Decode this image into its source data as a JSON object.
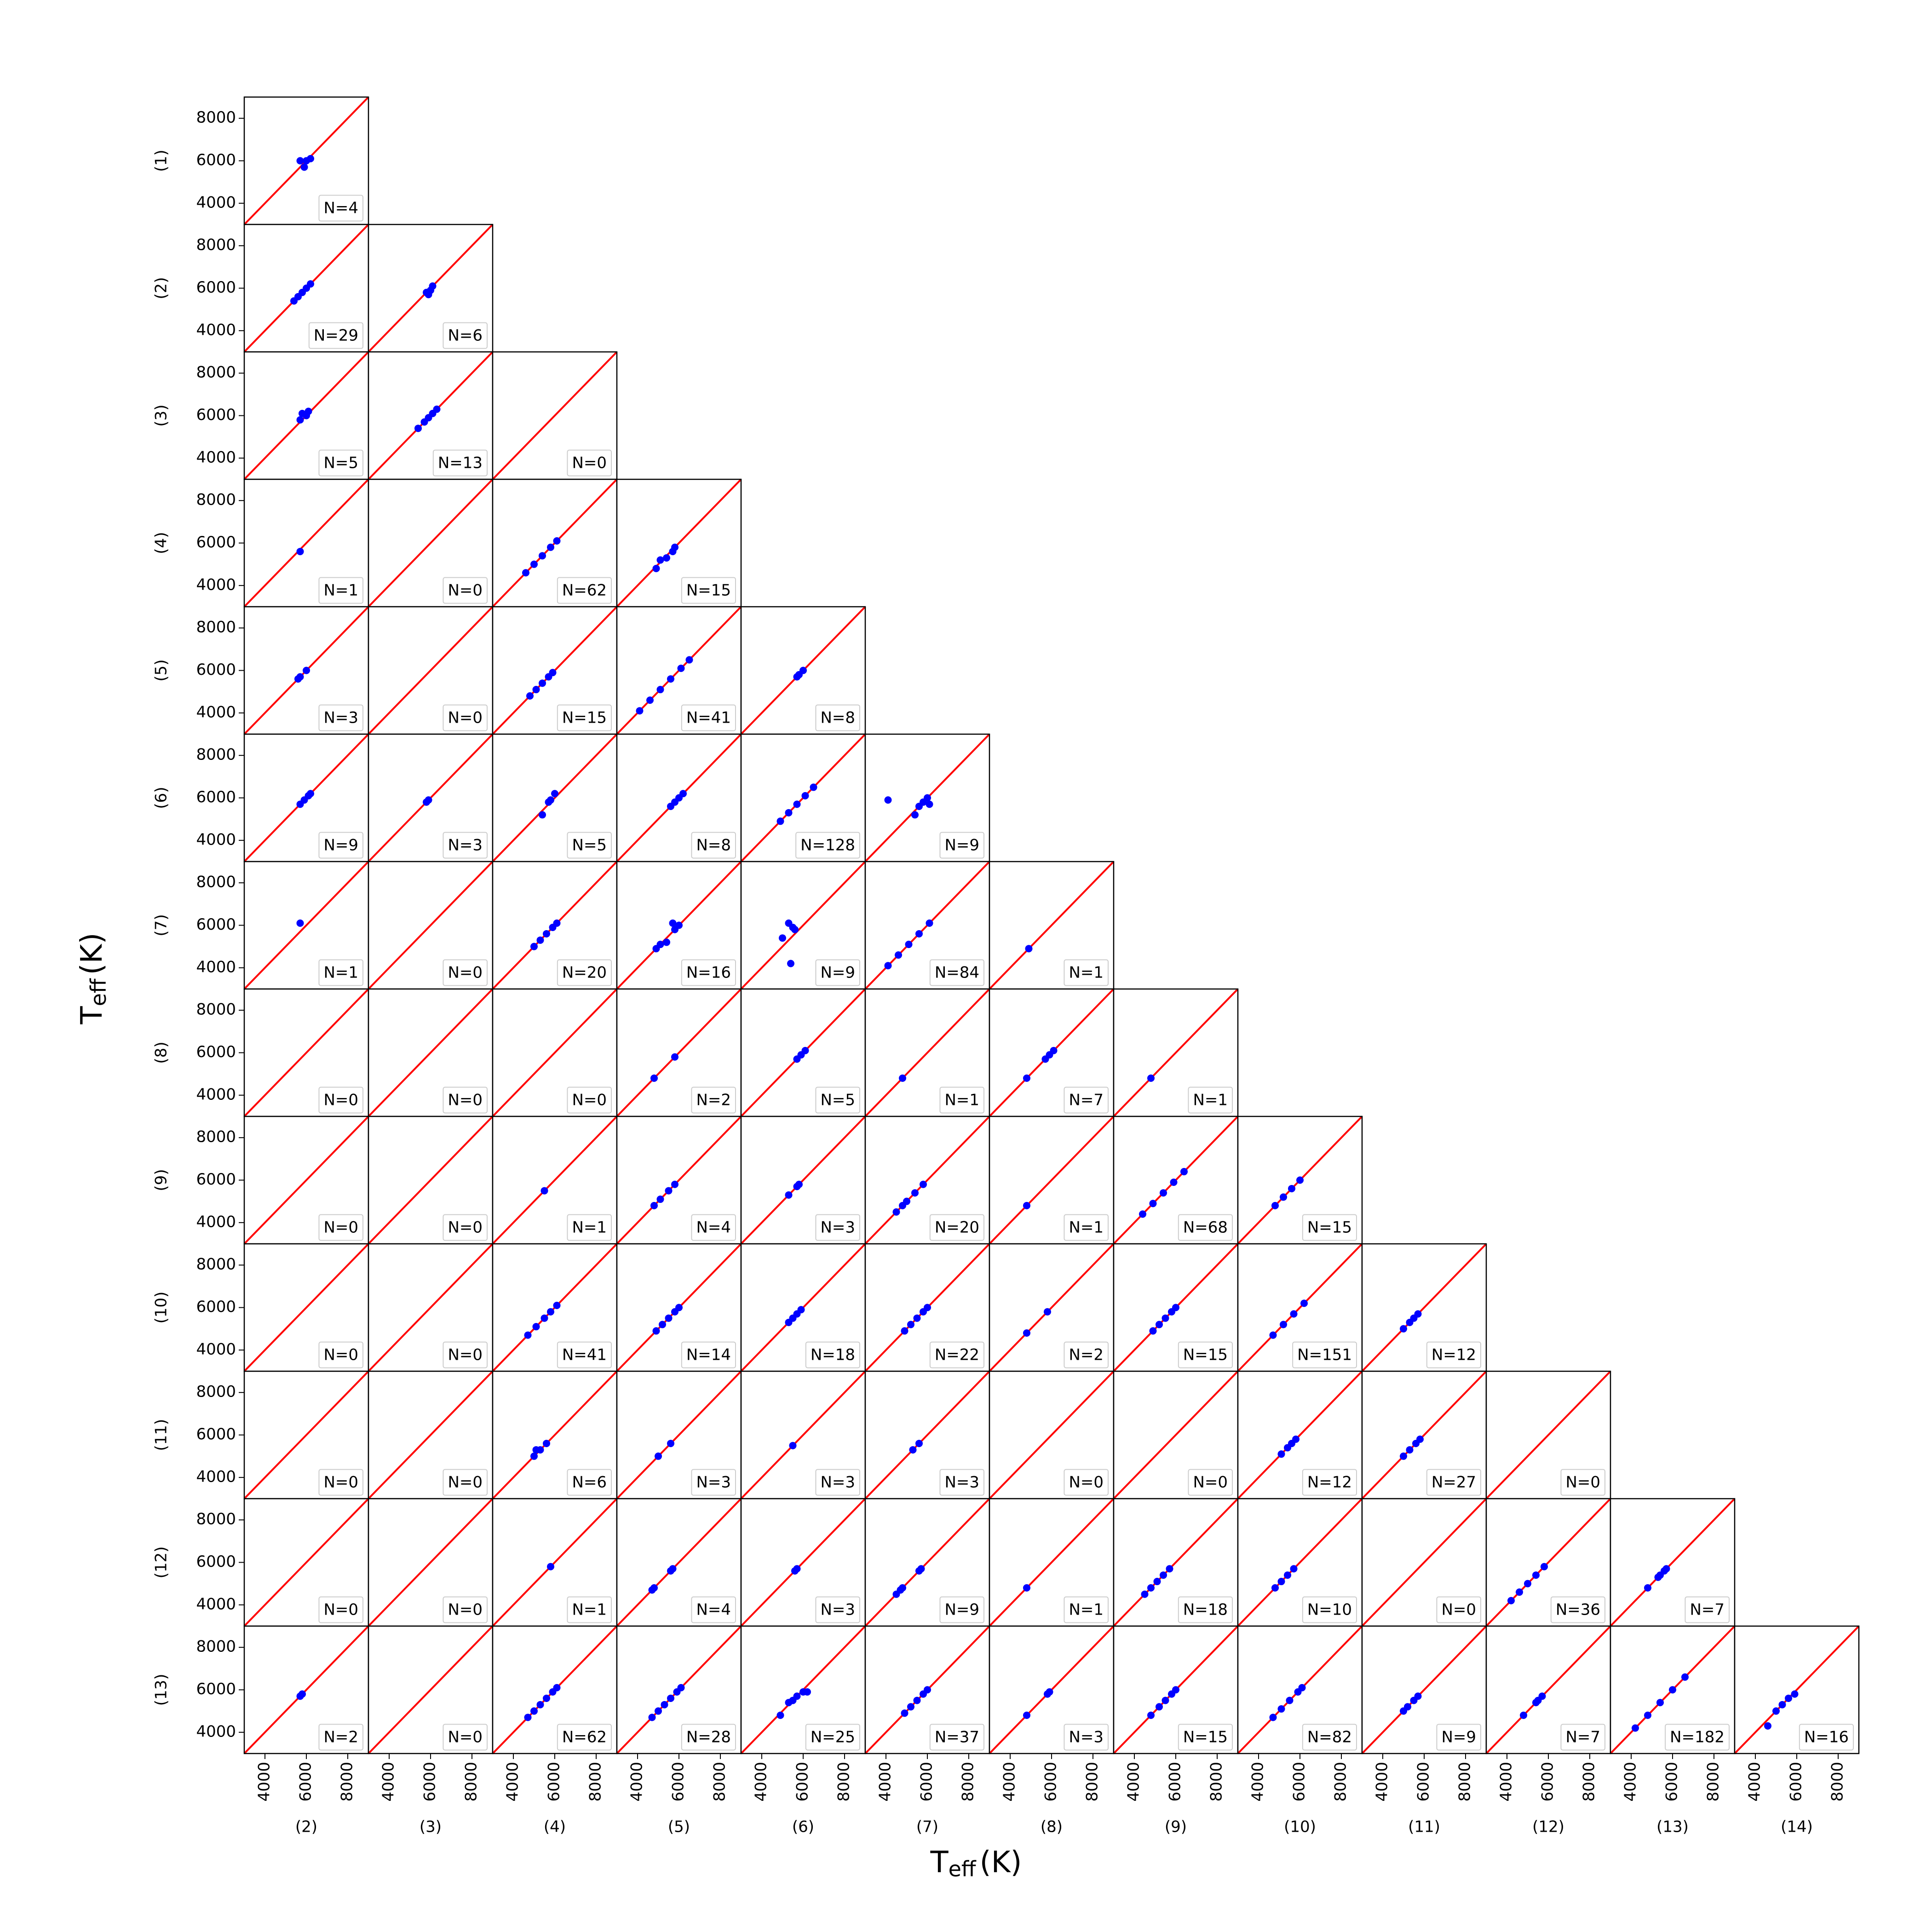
{
  "chart_data": {
    "type": "scatter-matrix",
    "xlabel": {
      "symbol": "T",
      "subscript": "eff",
      "unit": "(K)"
    },
    "ylabel": {
      "symbol": "T",
      "subscript": "eff",
      "unit": "(K)"
    },
    "row_labels": [
      "(1)",
      "(2)",
      "(3)",
      "(4)",
      "(5)",
      "(6)",
      "(7)",
      "(8)",
      "(9)",
      "(10)",
      "(11)",
      "(12)",
      "(13)"
    ],
    "col_labels": [
      "(2)",
      "(3)",
      "(4)",
      "(5)",
      "(6)",
      "(7)",
      "(8)",
      "(9)",
      "(10)",
      "(11)",
      "(12)",
      "(13)",
      "(14)"
    ],
    "xlim": [
      3000,
      9000
    ],
    "ylim": [
      3000,
      9000
    ],
    "xticks": [
      4000,
      6000,
      8000
    ],
    "yticks": [
      4000,
      6000,
      8000
    ],
    "color": "#0000ff",
    "diagonal_color": "#ff0000",
    "rows": [
      [
        {
          "label": "N=4",
          "x": [
            5700,
            5900,
            6000,
            6200
          ],
          "y": [
            6000,
            5700,
            6000,
            6100
          ]
        }
      ],
      [
        {
          "label": "N=29",
          "x": [
            5400,
            5600,
            5800,
            6000,
            6200
          ],
          "y": [
            5400,
            5600,
            5800,
            6000,
            6200
          ]
        },
        {
          "label": "N=6",
          "x": [
            5800,
            5900,
            6000,
            6100
          ],
          "y": [
            5800,
            5700,
            5900,
            6100
          ]
        }
      ],
      [
        {
          "label": "N=5",
          "x": [
            5700,
            5800,
            6000,
            6100
          ],
          "y": [
            5800,
            6100,
            6000,
            6200
          ]
        },
        {
          "label": "N=13",
          "x": [
            5400,
            5700,
            5900,
            6100,
            6300
          ],
          "y": [
            5400,
            5700,
            5900,
            6100,
            6300
          ]
        },
        {
          "label": "N=0",
          "x": [],
          "y": []
        }
      ],
      [
        {
          "label": "N=1",
          "x": [
            5700
          ],
          "y": [
            5600
          ]
        },
        {
          "label": "N=0",
          "x": [],
          "y": []
        },
        {
          "label": "N=62",
          "x": [
            4600,
            5000,
            5400,
            5800,
            6100
          ],
          "y": [
            4600,
            5000,
            5400,
            5800,
            6100
          ]
        },
        {
          "label": "N=15",
          "x": [
            4900,
            5100,
            5400,
            5700,
            5800
          ],
          "y": [
            4800,
            5200,
            5300,
            5600,
            5800
          ]
        }
      ],
      [
        {
          "label": "N=3",
          "x": [
            5600,
            5700,
            6000
          ],
          "y": [
            5600,
            5700,
            6000
          ]
        },
        {
          "label": "N=0",
          "x": [],
          "y": []
        },
        {
          "label": "N=15",
          "x": [
            4800,
            5100,
            5400,
            5700,
            5900
          ],
          "y": [
            4800,
            5100,
            5400,
            5700,
            5900
          ]
        },
        {
          "label": "N=41",
          "x": [
            4100,
            4600,
            5100,
            5600,
            6100,
            6500
          ],
          "y": [
            4100,
            4600,
            5100,
            5600,
            6100,
            6500
          ]
        },
        {
          "label": "N=8",
          "x": [
            5700,
            5800,
            6000
          ],
          "y": [
            5700,
            5800,
            6000
          ]
        }
      ],
      [
        {
          "label": "N=9",
          "x": [
            5700,
            5900,
            6100,
            6200
          ],
          "y": [
            5700,
            5900,
            6100,
            6200
          ]
        },
        {
          "label": "N=3",
          "x": [
            5800,
            5900
          ],
          "y": [
            5800,
            5900
          ]
        },
        {
          "label": "N=5",
          "x": [
            5400,
            5700,
            5800,
            6000
          ],
          "y": [
            5200,
            5800,
            5900,
            6200
          ]
        },
        {
          "label": "N=8",
          "x": [
            5600,
            5800,
            6000,
            6200
          ],
          "y": [
            5600,
            5800,
            6000,
            6200
          ]
        },
        {
          "label": "N=128",
          "x": [
            4900,
            5300,
            5700,
            6100,
            6500
          ],
          "y": [
            4900,
            5300,
            5700,
            6100,
            6500
          ]
        },
        {
          "label": "N=9",
          "x": [
            4100,
            5400,
            5600,
            5800,
            6000,
            6100
          ],
          "y": [
            5900,
            5200,
            5600,
            5800,
            6000,
            5700
          ]
        }
      ],
      [
        {
          "label": "N=1",
          "x": [
            5700
          ],
          "y": [
            6100
          ]
        },
        {
          "label": "N=0",
          "x": [],
          "y": []
        },
        {
          "label": "N=20",
          "x": [
            5000,
            5300,
            5600,
            5900,
            6100
          ],
          "y": [
            5000,
            5300,
            5600,
            5900,
            6100
          ]
        },
        {
          "label": "N=16",
          "x": [
            4900,
            5100,
            5400,
            5700,
            5800,
            6000
          ],
          "y": [
            4900,
            5100,
            5200,
            6100,
            5800,
            6000
          ]
        },
        {
          "label": "N=9",
          "x": [
            5000,
            5300,
            5500,
            5600,
            5400
          ],
          "y": [
            5400,
            6100,
            5900,
            5800,
            4200
          ]
        },
        {
          "label": "N=84",
          "x": [
            4100,
            4600,
            5100,
            5600,
            6100
          ],
          "y": [
            4100,
            4600,
            5100,
            5600,
            6100
          ]
        },
        {
          "label": "N=1",
          "x": [
            4900
          ],
          "y": [
            4900
          ]
        }
      ],
      [
        {
          "label": "N=0",
          "x": [],
          "y": []
        },
        {
          "label": "N=0",
          "x": [],
          "y": []
        },
        {
          "label": "N=0",
          "x": [],
          "y": []
        },
        {
          "label": "N=2",
          "x": [
            4800,
            5800
          ],
          "y": [
            4800,
            5800
          ]
        },
        {
          "label": "N=5",
          "x": [
            5700,
            5900,
            6100
          ],
          "y": [
            5700,
            5900,
            6100
          ]
        },
        {
          "label": "N=1",
          "x": [
            4800
          ],
          "y": [
            4800
          ]
        },
        {
          "label": "N=7",
          "x": [
            4800,
            5700,
            5900,
            6100
          ],
          "y": [
            4800,
            5700,
            5900,
            6100
          ]
        },
        {
          "label": "N=1",
          "x": [
            4800
          ],
          "y": [
            4800
          ]
        }
      ],
      [
        {
          "label": "N=0",
          "x": [],
          "y": []
        },
        {
          "label": "N=0",
          "x": [],
          "y": []
        },
        {
          "label": "N=1",
          "x": [
            5500
          ],
          "y": [
            5500
          ]
        },
        {
          "label": "N=4",
          "x": [
            4800,
            5100,
            5500,
            5800
          ],
          "y": [
            4800,
            5100,
            5500,
            5800
          ]
        },
        {
          "label": "N=3",
          "x": [
            5300,
            5700,
            5800
          ],
          "y": [
            5300,
            5700,
            5800
          ]
        },
        {
          "label": "N=20",
          "x": [
            4500,
            4800,
            5000,
            5400,
            5800
          ],
          "y": [
            4500,
            4800,
            5000,
            5400,
            5800
          ]
        },
        {
          "label": "N=1",
          "x": [
            4800
          ],
          "y": [
            4800
          ]
        },
        {
          "label": "N=68",
          "x": [
            4400,
            4900,
            5400,
            5900,
            6400
          ],
          "y": [
            4400,
            4900,
            5400,
            5900,
            6400
          ]
        },
        {
          "label": "N=15",
          "x": [
            4800,
            5200,
            5600,
            6000
          ],
          "y": [
            4800,
            5200,
            5600,
            6000
          ]
        }
      ],
      [
        {
          "label": "N=0",
          "x": [],
          "y": []
        },
        {
          "label": "N=0",
          "x": [],
          "y": []
        },
        {
          "label": "N=41",
          "x": [
            4700,
            5100,
            5500,
            5800,
            6100
          ],
          "y": [
            4700,
            5100,
            5500,
            5800,
            6100
          ]
        },
        {
          "label": "N=14",
          "x": [
            4900,
            5200,
            5500,
            5800,
            6000
          ],
          "y": [
            4900,
            5200,
            5500,
            5800,
            6000
          ]
        },
        {
          "label": "N=18",
          "x": [
            5300,
            5500,
            5700,
            5900
          ],
          "y": [
            5300,
            5500,
            5700,
            5900
          ]
        },
        {
          "label": "N=22",
          "x": [
            4900,
            5200,
            5500,
            5800,
            6000
          ],
          "y": [
            4900,
            5200,
            5500,
            5800,
            6000
          ]
        },
        {
          "label": "N=2",
          "x": [
            4800,
            5800
          ],
          "y": [
            4800,
            5800
          ]
        },
        {
          "label": "N=15",
          "x": [
            4900,
            5200,
            5500,
            5800,
            6000
          ],
          "y": [
            4900,
            5200,
            5500,
            5800,
            6000
          ]
        },
        {
          "label": "N=151",
          "x": [
            4700,
            5200,
            5700,
            6200
          ],
          "y": [
            4700,
            5200,
            5700,
            6200
          ]
        },
        {
          "label": "N=12",
          "x": [
            5000,
            5300,
            5500,
            5700
          ],
          "y": [
            5000,
            5300,
            5500,
            5700
          ]
        }
      ],
      [
        {
          "label": "N=0",
          "x": [],
          "y": []
        },
        {
          "label": "N=0",
          "x": [],
          "y": []
        },
        {
          "label": "N=6",
          "x": [
            5000,
            5100,
            5300,
            5600
          ],
          "y": [
            5000,
            5300,
            5300,
            5600
          ]
        },
        {
          "label": "N=3",
          "x": [
            5000,
            5600
          ],
          "y": [
            5000,
            5600
          ]
        },
        {
          "label": "N=3",
          "x": [
            5500
          ],
          "y": [
            5500
          ]
        },
        {
          "label": "N=3",
          "x": [
            5300,
            5600
          ],
          "y": [
            5300,
            5600
          ]
        },
        {
          "label": "N=0",
          "x": [],
          "y": []
        },
        {
          "label": "N=0",
          "x": [],
          "y": []
        },
        {
          "label": "N=12",
          "x": [
            5100,
            5400,
            5600,
            5800
          ],
          "y": [
            5100,
            5400,
            5600,
            5800
          ]
        },
        {
          "label": "N=27",
          "x": [
            5000,
            5300,
            5600,
            5800
          ],
          "y": [
            5000,
            5300,
            5600,
            5800
          ]
        },
        {
          "label": "N=0",
          "x": [],
          "y": []
        }
      ],
      [
        {
          "label": "N=0",
          "x": [],
          "y": []
        },
        {
          "label": "N=0",
          "x": [],
          "y": []
        },
        {
          "label": "N=1",
          "x": [
            5800
          ],
          "y": [
            5800
          ]
        },
        {
          "label": "N=4",
          "x": [
            4700,
            4800,
            5600,
            5700
          ],
          "y": [
            4700,
            4800,
            5600,
            5700
          ]
        },
        {
          "label": "N=3",
          "x": [
            5600,
            5700
          ],
          "y": [
            5600,
            5700
          ]
        },
        {
          "label": "N=9",
          "x": [
            4500,
            4700,
            4800,
            5600,
            5700
          ],
          "y": [
            4500,
            4700,
            4800,
            5600,
            5700
          ]
        },
        {
          "label": "N=1",
          "x": [
            4800
          ],
          "y": [
            4800
          ]
        },
        {
          "label": "N=18",
          "x": [
            4500,
            4800,
            5100,
            5400,
            5700
          ],
          "y": [
            4500,
            4800,
            5100,
            5400,
            5700
          ]
        },
        {
          "label": "N=10",
          "x": [
            4800,
            5100,
            5400,
            5700
          ],
          "y": [
            4800,
            5100,
            5400,
            5700
          ]
        },
        {
          "label": "N=0",
          "x": [],
          "y": []
        },
        {
          "label": "N=36",
          "x": [
            4200,
            4600,
            5000,
            5400,
            5800
          ],
          "y": [
            4200,
            4600,
            5000,
            5400,
            5800
          ]
        },
        {
          "label": "N=7",
          "x": [
            4800,
            5300,
            5400,
            5600,
            5700
          ],
          "y": [
            4800,
            5300,
            5400,
            5600,
            5700
          ]
        }
      ],
      [
        {
          "label": "N=2",
          "x": [
            5700,
            5800
          ],
          "y": [
            5700,
            5800
          ]
        },
        {
          "label": "N=0",
          "x": [],
          "y": []
        },
        {
          "label": "N=62",
          "x": [
            4700,
            5000,
            5300,
            5600,
            5900,
            6100
          ],
          "y": [
            4700,
            5000,
            5300,
            5600,
            5900,
            6100
          ]
        },
        {
          "label": "N=28",
          "x": [
            4700,
            5000,
            5300,
            5600,
            5900,
            6100
          ],
          "y": [
            4700,
            5000,
            5300,
            5600,
            5900,
            6100
          ]
        },
        {
          "label": "N=25",
          "x": [
            4900,
            5300,
            5500,
            5700,
            6000,
            6200
          ],
          "y": [
            4800,
            5400,
            5500,
            5700,
            5900,
            5900
          ]
        },
        {
          "label": "N=37",
          "x": [
            4900,
            5200,
            5500,
            5800,
            6000
          ],
          "y": [
            4900,
            5200,
            5500,
            5800,
            6000
          ]
        },
        {
          "label": "N=3",
          "x": [
            4800,
            5800,
            5900
          ],
          "y": [
            4800,
            5800,
            5900
          ]
        },
        {
          "label": "N=15",
          "x": [
            4800,
            5200,
            5500,
            5800,
            6000
          ],
          "y": [
            4800,
            5200,
            5500,
            5800,
            6000
          ]
        },
        {
          "label": "N=82",
          "x": [
            4700,
            5100,
            5500,
            5900,
            6100
          ],
          "y": [
            4700,
            5100,
            5500,
            5900,
            6100
          ]
        },
        {
          "label": "N=9",
          "x": [
            5000,
            5200,
            5500,
            5700
          ],
          "y": [
            5000,
            5200,
            5500,
            5700
          ]
        },
        {
          "label": "N=7",
          "x": [
            4800,
            5400,
            5500,
            5700
          ],
          "y": [
            4800,
            5400,
            5500,
            5700
          ]
        },
        {
          "label": "N=182",
          "x": [
            4200,
            4800,
            5400,
            6000,
            6600
          ],
          "y": [
            4200,
            4800,
            5400,
            6000,
            6600
          ]
        },
        {
          "label": "N=16",
          "x": [
            4600,
            5000,
            5300,
            5600,
            5900
          ],
          "y": [
            4300,
            5000,
            5300,
            5600,
            5800
          ]
        }
      ]
    ]
  }
}
